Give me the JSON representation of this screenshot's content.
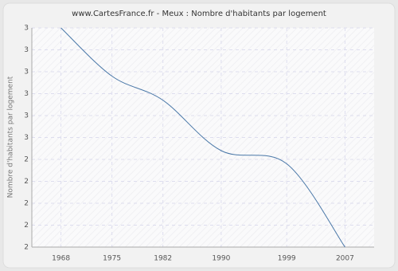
{
  "chart_data": {
    "type": "line",
    "title": "www.CartesFrance.fr - Meux : Nombre d'habitants par logement",
    "y_label": "Nombre d'habitants par logement",
    "x": [
      1968,
      1975,
      1982,
      1990,
      1999,
      2007
    ],
    "series": [
      {
        "name": "Meux",
        "color": "#4a78a8",
        "values": [
          3.0,
          2.78,
          2.67,
          2.44,
          2.38,
          2.0
        ]
      }
    ],
    "xlim": [
      1964,
      2011
    ],
    "xticks": [
      1968,
      1975,
      1982,
      1990,
      1999,
      2007
    ],
    "ylim": [
      2,
      3
    ],
    "yticks": [
      2,
      {
        "value": 2.1,
        "label": "2"
      },
      {
        "value": 2.2,
        "label": "2"
      },
      {
        "value": 2.3,
        "label": "2"
      },
      {
        "value": 2.4,
        "label": "2"
      },
      {
        "value": 2.5,
        "label": "3"
      },
      {
        "value": 2.6,
        "label": "3"
      },
      {
        "value": 2.7,
        "label": "3"
      },
      {
        "value": 2.8,
        "label": "3"
      },
      {
        "value": 2.9,
        "label": "3"
      },
      3
    ],
    "grid": true
  }
}
